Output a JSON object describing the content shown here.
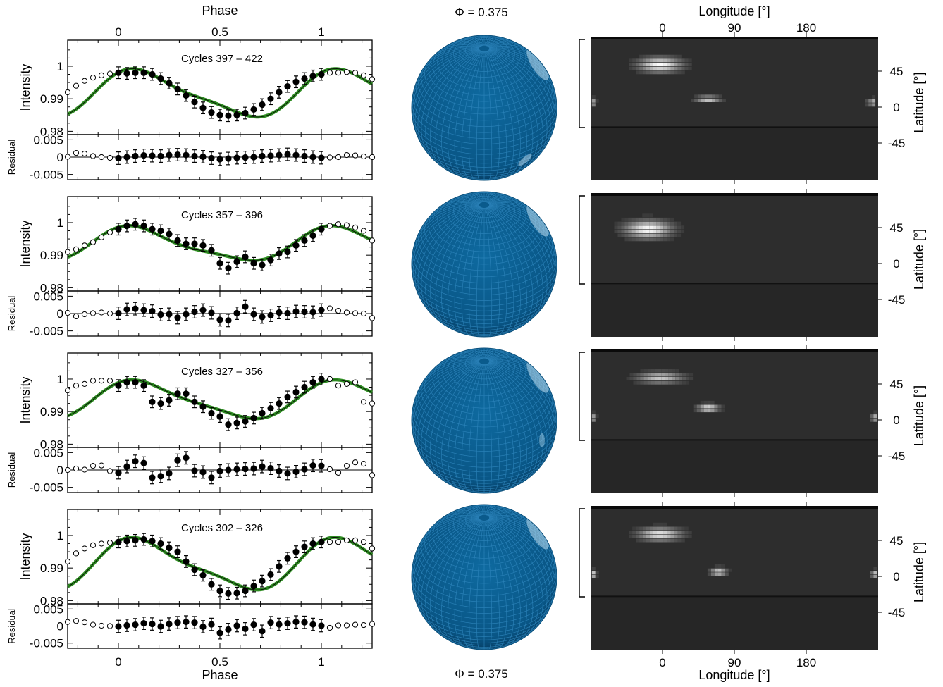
{
  "colors": {
    "model_curve": "#2e8b22",
    "sphere": "#0a5a8a",
    "sphere_grid": "#2f86bd",
    "map_background": "#262626",
    "spot": "#f2f2f2",
    "points": "#000000"
  },
  "top_phase_label": "Phase",
  "bottom_phase_label": "Phase",
  "top_sphere_label": "Φ = 0.375",
  "bottom_sphere_label": "Φ = 0.375",
  "top_longitude_label": "Longitude [°]",
  "bottom_longitude_label": "Longitude [°]",
  "intensity_label": "Intensity",
  "residual_label": "Residual",
  "latitude_label": "Latitude [°]",
  "phase_ticks": [
    "0",
    "0.5",
    "1"
  ],
  "intensity_ticks": [
    "1",
    "0.99",
    "0.98"
  ],
  "residual_ticks": [
    "0.005",
    "0",
    "-0.005"
  ],
  "longitude_ticks": [
    "0",
    "90",
    "180"
  ],
  "latitude_ticks": [
    "45",
    "0",
    "-45"
  ],
  "chart_data": [
    {
      "type": "scatter",
      "title": "Cycles 397 – 422",
      "xlabel": "Phase",
      "ylabel": "Intensity",
      "xlim": [
        -0.25,
        1.25
      ],
      "ylim": [
        0.979,
        1.008
      ],
      "residual_ylim": [
        -0.0065,
        0.0065
      ],
      "model": {
        "mean": 0.9915,
        "a1": 0.005,
        "b1": 0.0046,
        "a2": 0.0016,
        "b2": 0.0003
      },
      "series": [
        {
          "values": [
            0.992,
            0.994,
            0.9955,
            0.9965,
            0.9972,
            0.9977,
            0.998,
            0.9978,
            0.998,
            0.998,
            0.9975,
            0.9962,
            0.9948,
            0.993,
            0.991,
            0.989,
            0.9872,
            0.9858,
            0.985,
            0.9848,
            0.985,
            0.9856,
            0.9867,
            0.9882,
            0.99,
            0.992,
            0.9938,
            0.9952,
            0.9962,
            0.997,
            0.9975,
            0.998,
            0.998,
            0.9982,
            0.998,
            0.9972,
            0.996
          ]
        },
        {
          "values": [
            0.0001,
            0.0012,
            0.001,
            0.0003,
            0.0,
            -0.0002,
            -0.0003,
            0.0,
            0.0003,
            0.0005,
            0.0004,
            0.0003,
            0.0006,
            0.0007,
            0.0006,
            0.0003,
            0.0001,
            -0.0003,
            -0.0006,
            -0.0004,
            -0.0002,
            -0.0001,
            0.0,
            0.0003,
            0.0004,
            0.0006,
            0.0008,
            0.0006,
            0.0003,
            0.0,
            -0.0002,
            -0.0001,
            0.0,
            0.0006,
            0.0005,
            0.0002,
            0.0
          ]
        }
      ]
    },
    {
      "type": "scatter",
      "title": "Cycles 357 – 396",
      "xlabel": "Phase",
      "ylabel": "Intensity",
      "xlim": [
        -0.25,
        1.25
      ],
      "ylim": [
        0.979,
        1.008
      ],
      "residual_ylim": [
        -0.0065,
        0.0065
      ],
      "model": {
        "mean": 0.9932,
        "a1": 0.0042,
        "b1": 0.0026,
        "a2": 0.0012,
        "b2": 0.0002
      },
      "series": [
        {
          "values": [
            0.991,
            0.9918,
            0.993,
            0.994,
            0.9955,
            0.997,
            0.998,
            0.999,
            0.9995,
            0.999,
            0.998,
            0.9975,
            0.9965,
            0.9945,
            0.9935,
            0.9935,
            0.993,
            0.9915,
            0.9875,
            0.986,
            0.988,
            0.9895,
            0.9875,
            0.987,
            0.9885,
            0.9905,
            0.991,
            0.993,
            0.9945,
            0.996,
            0.998,
            0.999,
            0.9995,
            0.9992,
            0.9985,
            0.9975,
            0.9945
          ]
        },
        {
          "values": [
            0.0002,
            -0.0008,
            -0.0002,
            0.0001,
            0.0003,
            0.0,
            0.0001,
            0.0012,
            0.0014,
            0.001,
            0.0007,
            -0.0003,
            -0.0002,
            -0.0012,
            -0.0002,
            0.0005,
            0.001,
            0.0002,
            -0.0018,
            -0.002,
            0.0001,
            0.002,
            -0.0002,
            -0.001,
            -0.0005,
            0.0003,
            0.0001,
            0.0006,
            0.0005,
            0.0004,
            0.001,
            0.0015,
            0.0008,
            0.0003,
            0.0001,
            0.0,
            -0.0013
          ]
        }
      ]
    },
    {
      "type": "scatter",
      "title": "Cycles 327 – 356",
      "xlabel": "Phase",
      "ylabel": "Intensity",
      "xlim": [
        -0.25,
        1.25
      ],
      "ylim": [
        0.979,
        1.008
      ],
      "residual_ylim": [
        -0.0065,
        0.0065
      ],
      "model": {
        "mean": 0.9935,
        "a1": 0.0042,
        "b1": 0.0036,
        "a2": 0.0012,
        "b2": 0.0002
      },
      "series": [
        {
          "values": [
            0.9965,
            0.998,
            0.9985,
            0.9995,
            0.9995,
            0.9995,
            0.998,
            0.999,
            0.999,
            0.998,
            0.993,
            0.9925,
            0.9935,
            0.9955,
            0.9955,
            0.993,
            0.9915,
            0.9895,
            0.9885,
            0.986,
            0.9865,
            0.987,
            0.988,
            0.9895,
            0.991,
            0.9925,
            0.9945,
            0.996,
            0.9975,
            0.999,
            1.0,
            1.0,
            0.998,
            0.9985,
            0.999,
            0.993,
            0.9925
          ]
        },
        {
          "values": [
            0.0,
            0.0004,
            0.0001,
            0.0012,
            0.0013,
            -0.0003,
            -0.0008,
            0.001,
            0.0025,
            0.002,
            -0.0022,
            -0.0018,
            -0.001,
            0.0028,
            0.0035,
            -0.0002,
            -0.0006,
            -0.0022,
            -0.0003,
            0.0,
            0.0002,
            0.0003,
            0.0004,
            0.001,
            0.0005,
            -0.0003,
            -0.001,
            -0.0005,
            0.0002,
            0.0013,
            0.0012,
            0.0002,
            -0.0008,
            0.0012,
            0.0022,
            0.0018,
            -0.0015
          ]
        }
      ]
    },
    {
      "type": "scatter",
      "title": "Cycles 302 – 326",
      "xlabel": "Phase",
      "ylabel": "Intensity",
      "xlim": [
        -0.25,
        1.25
      ],
      "ylim": [
        0.979,
        1.008
      ],
      "residual_ylim": [
        -0.0065,
        0.0065
      ],
      "model": {
        "mean": 0.991,
        "a1": 0.0055,
        "b1": 0.0049,
        "a2": 0.0018,
        "b2": 0.0003
      },
      "series": [
        {
          "values": [
            0.992,
            0.9945,
            0.996,
            0.997,
            0.9975,
            0.9978,
            0.998,
            0.9983,
            0.9985,
            0.9988,
            0.9983,
            0.9975,
            0.9962,
            0.995,
            0.992,
            0.9895,
            0.9878,
            0.985,
            0.983,
            0.9822,
            0.9823,
            0.983,
            0.9845,
            0.986,
            0.988,
            0.9905,
            0.993,
            0.995,
            0.9965,
            0.9975,
            0.998,
            0.998,
            0.998,
            0.9985,
            0.9985,
            0.998,
            0.996
          ]
        },
        {
          "values": [
            0.0012,
            0.0015,
            0.0011,
            0.0004,
            0.0001,
            0.0,
            -0.0001,
            0.0002,
            0.0004,
            0.0008,
            0.0006,
            -0.0001,
            0.0006,
            0.001,
            0.0012,
            0.001,
            -0.0002,
            0.0005,
            -0.002,
            -0.001,
            0.0001,
            -0.0008,
            0.0004,
            -0.0015,
            0.001,
            0.0005,
            0.0008,
            0.0012,
            0.0011,
            0.0005,
            0.0001,
            -0.0005,
            0.0002,
            0.0002,
            0.0004,
            0.0003,
            0.0006
          ]
        }
      ]
    }
  ],
  "maps": [
    {
      "spots": [
        {
          "lon": -5,
          "lat": 55,
          "wlon": 26,
          "wlat": 9,
          "i": 1.0
        },
        {
          "lon": 55,
          "lat": 12,
          "wlon": 15,
          "wlat": 4,
          "i": 0.8
        },
        {
          "lon": 265,
          "lat": 8,
          "wlon": 10,
          "wlat": 5,
          "i": 0.75
        },
        {
          "lon": -88,
          "lat": 8,
          "wlon": 3,
          "wlat": 5,
          "i": 0.6
        }
      ]
    },
    {
      "spots": [
        {
          "lon": -20,
          "lat": 45,
          "wlon": 28,
          "wlat": 11,
          "i": 1.0
        }
      ]
    },
    {
      "spots": [
        {
          "lon": -5,
          "lat": 55,
          "wlon": 28,
          "wlat": 7,
          "i": 0.75
        },
        {
          "lon": 55,
          "lat": 17,
          "wlon": 13,
          "wlat": 5,
          "i": 0.9
        },
        {
          "lon": 265,
          "lat": 5,
          "wlon": 6,
          "wlat": 5,
          "i": 0.7
        },
        {
          "lon": -88,
          "lat": 5,
          "wlon": 3,
          "wlat": 5,
          "i": 0.6
        }
      ]
    },
    {
      "spots": [
        {
          "lon": -5,
          "lat": 55,
          "wlon": 26,
          "wlat": 8,
          "i": 0.9
        },
        {
          "lon": 68,
          "lat": 8,
          "wlon": 10,
          "wlat": 5,
          "i": 0.85
        },
        {
          "lon": 265,
          "lat": 5,
          "wlon": 6,
          "wlat": 5,
          "i": 0.8
        },
        {
          "lon": -88,
          "lat": 5,
          "wlon": 3,
          "wlat": 5,
          "i": 0.85
        }
      ]
    }
  ]
}
